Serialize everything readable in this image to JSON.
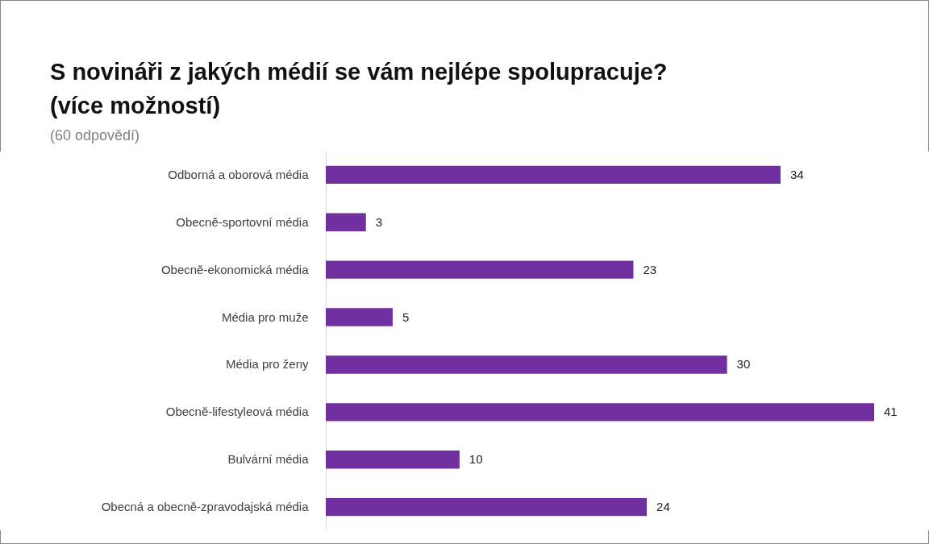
{
  "chart_data": {
    "type": "bar",
    "orientation": "horizontal",
    "title": "S novináři z jakých médií se vám nejlépe spolupracuje? (více možností)",
    "subtitle": "(60 odpovědí)",
    "categories": [
      "Odborná a oborová média",
      "Obecně-sportovní média",
      "Obecně-ekonomická média",
      "Média pro muže",
      "Média pro ženy",
      "Obecně-lifestyleová média",
      "Bulvární média",
      "Obecná a obecně-zpravodajská média"
    ],
    "values": [
      34,
      3,
      23,
      5,
      30,
      41,
      10,
      24
    ],
    "color": "#7030a0",
    "data_labels": true
  }
}
